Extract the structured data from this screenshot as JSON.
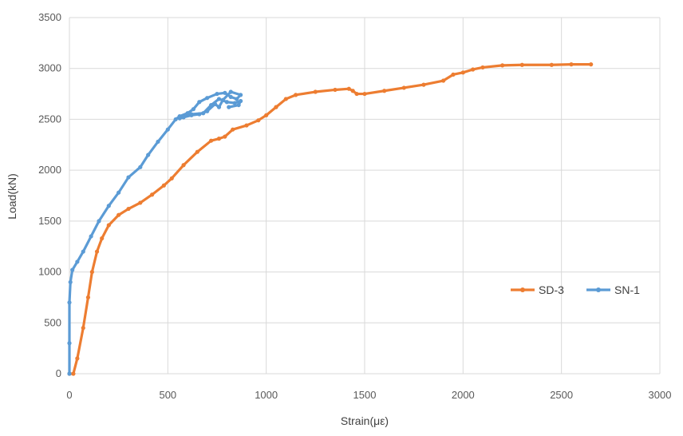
{
  "chart_data": {
    "type": "line",
    "xlabel": "Strain(με)",
    "ylabel": "Load(kN)",
    "xlim": [
      0,
      3000
    ],
    "ylim": [
      0,
      3500
    ],
    "x_ticks": [
      "0",
      "500",
      "1000",
      "1500",
      "2000",
      "2500",
      "3000"
    ],
    "y_ticks": [
      "0",
      "500",
      "1000",
      "1500",
      "2000",
      "2500",
      "3000",
      "3500"
    ],
    "grid": true,
    "legend_position": "right-center",
    "series": [
      {
        "name": "SD-3",
        "color": "#ED7D31",
        "points": [
          [
            0,
            0
          ],
          [
            20,
            0
          ],
          [
            40,
            150
          ],
          [
            70,
            450
          ],
          [
            95,
            750
          ],
          [
            115,
            1000
          ],
          [
            140,
            1200
          ],
          [
            165,
            1330
          ],
          [
            200,
            1460
          ],
          [
            250,
            1560
          ],
          [
            300,
            1620
          ],
          [
            360,
            1680
          ],
          [
            420,
            1760
          ],
          [
            480,
            1850
          ],
          [
            520,
            1920
          ],
          [
            580,
            2050
          ],
          [
            650,
            2180
          ],
          [
            720,
            2290
          ],
          [
            760,
            2310
          ],
          [
            790,
            2330
          ],
          [
            830,
            2400
          ],
          [
            900,
            2440
          ],
          [
            960,
            2490
          ],
          [
            1000,
            2540
          ],
          [
            1050,
            2620
          ],
          [
            1100,
            2700
          ],
          [
            1150,
            2740
          ],
          [
            1250,
            2770
          ],
          [
            1350,
            2790
          ],
          [
            1420,
            2800
          ],
          [
            1440,
            2780
          ],
          [
            1460,
            2750
          ],
          [
            1500,
            2750
          ],
          [
            1600,
            2780
          ],
          [
            1700,
            2810
          ],
          [
            1800,
            2840
          ],
          [
            1900,
            2880
          ],
          [
            1950,
            2940
          ],
          [
            2000,
            2960
          ],
          [
            2050,
            2990
          ],
          [
            2100,
            3010
          ],
          [
            2200,
            3030
          ],
          [
            2300,
            3035
          ],
          [
            2450,
            3035
          ],
          [
            2550,
            3040
          ],
          [
            2650,
            3040
          ]
        ]
      },
      {
        "name": "SN-1",
        "color": "#5B9BD5",
        "points": [
          [
            0,
            0
          ],
          [
            0,
            300
          ],
          [
            0,
            700
          ],
          [
            5,
            900
          ],
          [
            15,
            1020
          ],
          [
            40,
            1100
          ],
          [
            70,
            1200
          ],
          [
            110,
            1350
          ],
          [
            150,
            1500
          ],
          [
            200,
            1650
          ],
          [
            250,
            1780
          ],
          [
            300,
            1930
          ],
          [
            360,
            2030
          ],
          [
            400,
            2150
          ],
          [
            450,
            2280
          ],
          [
            500,
            2400
          ],
          [
            540,
            2500
          ],
          [
            560,
            2530
          ],
          [
            600,
            2560
          ],
          [
            630,
            2600
          ],
          [
            660,
            2670
          ],
          [
            700,
            2710
          ],
          [
            750,
            2750
          ],
          [
            790,
            2760
          ],
          [
            820,
            2720
          ],
          [
            850,
            2700
          ],
          [
            870,
            2740
          ],
          [
            820,
            2770
          ],
          [
            780,
            2690
          ],
          [
            760,
            2620
          ],
          [
            740,
            2650
          ],
          [
            700,
            2580
          ],
          [
            660,
            2550
          ],
          [
            620,
            2540
          ],
          [
            580,
            2520
          ],
          [
            560,
            2510
          ],
          [
            620,
            2550
          ],
          [
            680,
            2560
          ],
          [
            720,
            2640
          ],
          [
            760,
            2700
          ],
          [
            800,
            2670
          ],
          [
            840,
            2660
          ],
          [
            870,
            2680
          ],
          [
            860,
            2640
          ],
          [
            810,
            2620
          ]
        ]
      }
    ]
  }
}
